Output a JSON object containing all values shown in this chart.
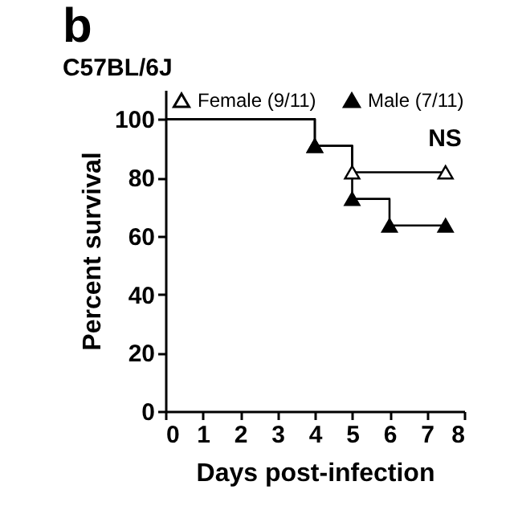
{
  "chart_data": {
    "type": "step",
    "title": "C57BL/6J",
    "xlabel": "Days post-infection",
    "ylabel": "Percent survival",
    "annotations": [
      "b",
      "NS"
    ],
    "series": [
      {
        "name": "Female (9/11)",
        "color": "#000000",
        "x": [
          0,
          4,
          5,
          7.5
        ],
        "values": [
          100,
          90.9,
          81.8,
          81.8
        ]
      },
      {
        "name": "Male (7/11)",
        "color": "#000000",
        "x": [
          0,
          4,
          5,
          6,
          7.5
        ],
        "values": [
          100,
          90.9,
          72.7,
          63.6,
          63.6
        ]
      }
    ],
    "xlim": [
      0,
      8
    ],
    "xticks": [
      0,
      1,
      2,
      3,
      4,
      5,
      6,
      7,
      8
    ],
    "ylim": [
      0,
      110
    ],
    "yticks": [
      0,
      20,
      40,
      60,
      80,
      100
    ],
    "marker": "triangle",
    "line_style": "solid",
    "grid": false,
    "legend": "top"
  }
}
